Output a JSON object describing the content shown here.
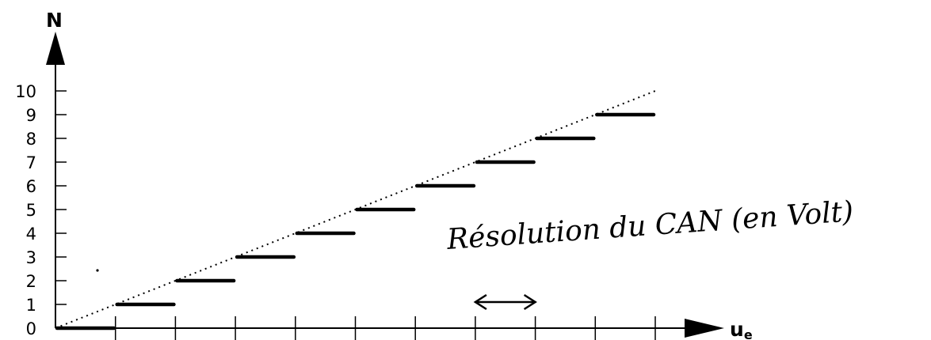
{
  "chart_data": {
    "type": "line",
    "title": "",
    "ylabel": "N",
    "xlabel_main": "u",
    "xlabel_sub": "e",
    "xlim": [
      0,
      10
    ],
    "ylim": [
      0,
      10
    ],
    "y_ticks": [
      "0",
      "1",
      "2",
      "3",
      "4",
      "5",
      "6",
      "7",
      "8",
      "9",
      "10"
    ],
    "x_ticks_count": 10,
    "grid": false,
    "series": [
      {
        "style": "step",
        "values": [
          0,
          1,
          2,
          3,
          4,
          5,
          6,
          7,
          8,
          9
        ]
      },
      {
        "style": "dotted",
        "points": [
          [
            0,
            0
          ],
          [
            10,
            10
          ]
        ]
      }
    ],
    "annotation": {
      "text": "Résolution du CAN (en Volt)",
      "arrow_from": 7,
      "arrow_to": 8
    }
  }
}
